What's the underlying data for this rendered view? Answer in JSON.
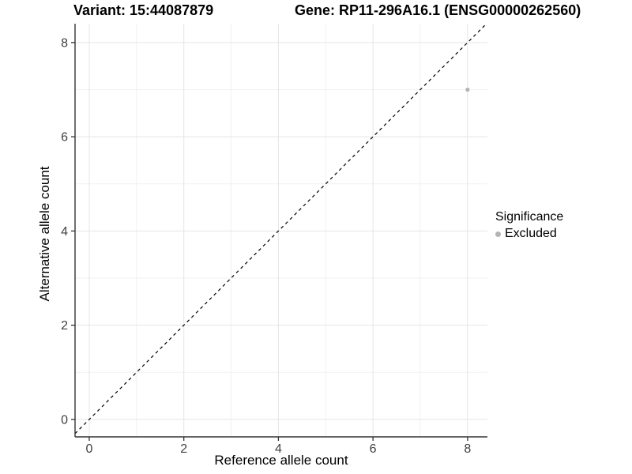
{
  "header": {
    "variant_title": "Variant: 15:44087879",
    "gene_title": "Gene: RP11-296A16.1 (ENSG00000262560)"
  },
  "chart_data": {
    "type": "scatter",
    "xlabel": "Reference allele count",
    "ylabel": "Alternative allele count",
    "xlim": [
      -0.3,
      8.42
    ],
    "ylim": [
      -0.37,
      8.4
    ],
    "xticks": [
      0,
      2,
      4,
      6,
      8
    ],
    "yticks": [
      0,
      2,
      4,
      6,
      8
    ],
    "x_minor_ticks": [
      1,
      3,
      5,
      7
    ],
    "y_minor_ticks": [
      1,
      3,
      5,
      7
    ],
    "grid": "major+minor",
    "series": [
      {
        "name": "Excluded",
        "color": "#b4b4b4",
        "points": [
          {
            "x": 8,
            "y": 7
          }
        ]
      }
    ],
    "identity_line": {
      "slope": 1,
      "intercept": 0,
      "style": "dashed",
      "color": "#000000"
    },
    "legend": {
      "title": "Significance",
      "position": "right",
      "entries": [
        {
          "label": "Excluded",
          "color": "#b4b4b4"
        }
      ]
    }
  },
  "colors": {
    "background": "#ffffff",
    "grid_major": "#e5e5e5",
    "grid_minor": "#f1f1f1",
    "axis_line": "#333333",
    "tick_text": "#404040",
    "point": "#b4b4b4",
    "dashed_line": "#000000"
  }
}
